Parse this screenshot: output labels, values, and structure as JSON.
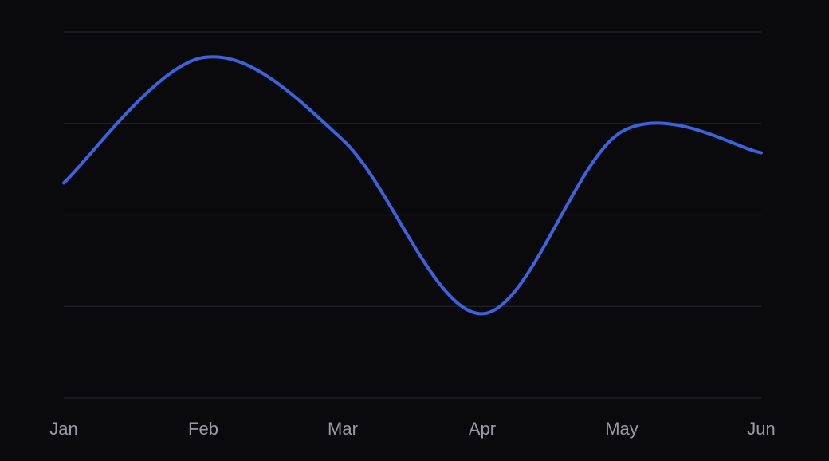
{
  "chart_data": {
    "type": "line",
    "title": "",
    "xlabel": "",
    "ylabel": "",
    "categories": [
      "Jan",
      "Feb",
      "Mar",
      "Apr",
      "May",
      "Jun"
    ],
    "series": [
      {
        "values": [
          235,
          372,
          282,
          92,
          291,
          268
        ],
        "color": "#3b63dd"
      }
    ],
    "ylim": [
      0,
      400
    ],
    "yticks": [
      0,
      100,
      200,
      300,
      400
    ],
    "grid": true,
    "legend": "none",
    "colors": {
      "background": "#0a0a0d",
      "grid": "#1f1f24",
      "tick_text": "#9b9ba3",
      "line": "#3b63dd"
    }
  }
}
